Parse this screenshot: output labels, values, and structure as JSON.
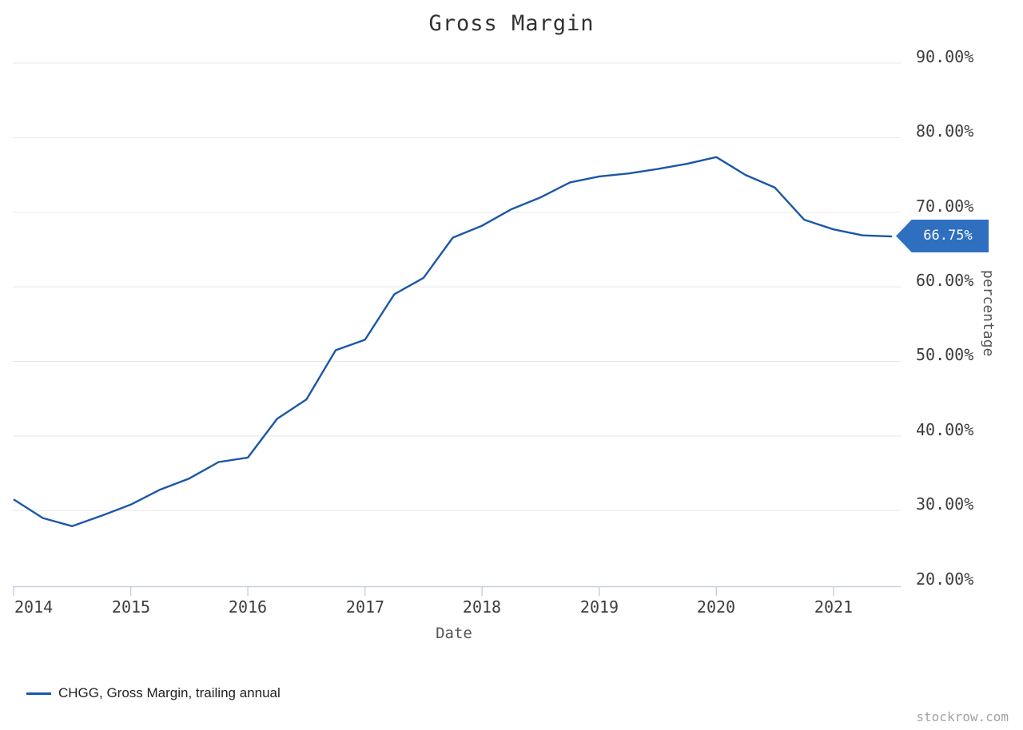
{
  "watermark": "stockrow.com",
  "colors": {
    "line": "#1b57a8",
    "tag_bg": "#2e6fc0",
    "tag_text": "#ffffff",
    "grid": "#e8e8e8",
    "axis": "#c8d0e6"
  },
  "chart_data": {
    "type": "line",
    "title": "Gross Margin",
    "xlabel": "Date",
    "ylabel": "percentage",
    "grid": "horizontal",
    "legend_position": "bottom-left",
    "xlim": [
      2014.0,
      2021.6
    ],
    "ylim": [
      20,
      90
    ],
    "x_axis": {
      "ticks": [
        {
          "value": 2014,
          "label": "2014"
        },
        {
          "value": 2015,
          "label": "2015"
        },
        {
          "value": 2016,
          "label": "2016"
        },
        {
          "value": 2017,
          "label": "2017"
        },
        {
          "value": 2018,
          "label": "2018"
        },
        {
          "value": 2019,
          "label": "2019"
        },
        {
          "value": 2020,
          "label": "2020"
        },
        {
          "value": 2021,
          "label": "2021"
        }
      ]
    },
    "y_axis": {
      "ticks": [
        {
          "value": 20,
          "label": "20.00%"
        },
        {
          "value": 30,
          "label": "30.00%"
        },
        {
          "value": 40,
          "label": "40.00%"
        },
        {
          "value": 50,
          "label": "50.00%"
        },
        {
          "value": 60,
          "label": "60.00%"
        },
        {
          "value": 70,
          "label": "70.00%"
        },
        {
          "value": 80,
          "label": "80.00%"
        },
        {
          "value": 90,
          "label": "90.00%"
        }
      ]
    },
    "series": [
      {
        "name": "CHGG, Gross Margin, trailing annual",
        "color": "#1b57a8",
        "x_years": [
          2014.0,
          2014.25,
          2014.5,
          2014.75,
          2015.0,
          2015.25,
          2015.5,
          2015.75,
          2016.0,
          2016.25,
          2016.5,
          2016.75,
          2017.0,
          2017.25,
          2017.5,
          2017.75,
          2018.0,
          2018.25,
          2018.5,
          2018.75,
          2019.0,
          2019.25,
          2019.5,
          2019.75,
          2020.0,
          2020.25,
          2020.5,
          2020.75,
          2021.0,
          2021.25,
          2021.5
        ],
        "values": [
          31.5,
          29.0,
          27.9,
          29.3,
          30.8,
          32.8,
          34.3,
          36.5,
          37.1,
          42.3,
          44.9,
          51.5,
          52.9,
          59.0,
          61.2,
          66.6,
          68.2,
          70.4,
          72.0,
          74.0,
          74.8,
          75.2,
          75.8,
          76.5,
          77.4,
          75.0,
          73.3,
          69.0,
          67.7,
          66.9,
          66.75
        ]
      }
    ],
    "last_value": 66.75,
    "last_value_label": "66.75%"
  }
}
